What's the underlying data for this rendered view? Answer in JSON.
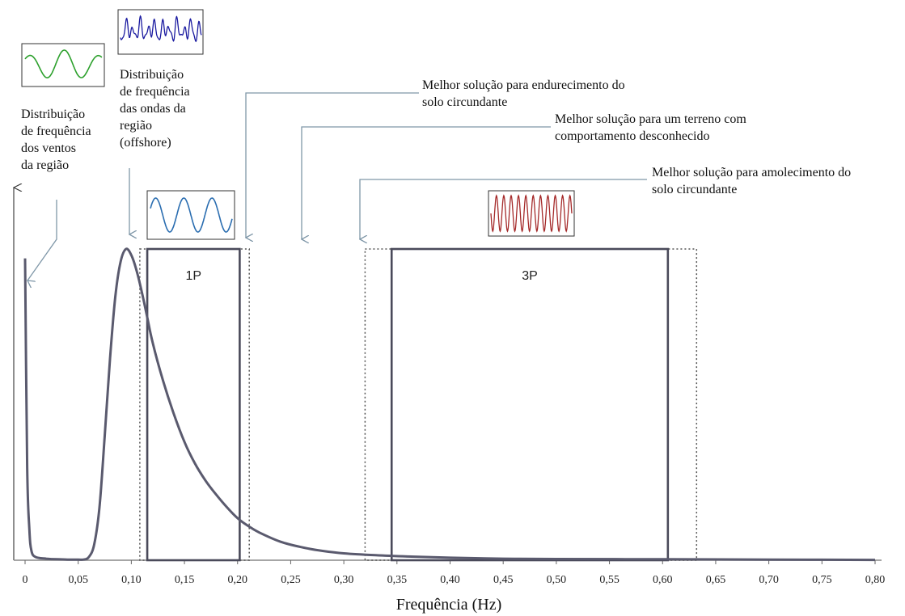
{
  "chart_data": {
    "type": "line",
    "title": "",
    "xlabel": "Frequência (Hz)",
    "ylabel": "",
    "xlim": [
      0,
      0.8
    ],
    "ylim": [
      0,
      1
    ],
    "grid": false,
    "x_ticks": [
      "0",
      "0,05",
      "0,10",
      "0,15",
      "0,20",
      "0,25",
      "0,30",
      "0,35",
      "0,40",
      "0,45",
      "0,50",
      "0,55",
      "0,60",
      "0,65",
      "0,70",
      "0,75",
      "0,80"
    ],
    "x_tick_values": [
      0,
      0.05,
      0.1,
      0.15,
      0.2,
      0.25,
      0.3,
      0.35,
      0.4,
      0.45,
      0.5,
      0.55,
      0.6,
      0.65,
      0.7,
      0.75,
      0.8
    ],
    "series": [
      {
        "x": [
          0,
          0.002,
          0.004,
          0.006,
          0.01,
          0.02,
          0.03,
          0.04,
          0.05,
          0.055,
          0.06,
          0.065,
          0.07,
          0.075,
          0.08,
          0.085,
          0.09,
          0.095,
          0.1,
          0.105,
          0.11,
          0.115,
          0.12,
          0.13,
          0.14,
          0.15,
          0.16,
          0.17,
          0.18,
          0.19,
          0.2,
          0.21,
          0.22,
          0.24,
          0.26,
          0.28,
          0.3,
          0.33,
          0.36,
          0.4,
          0.45,
          0.5,
          0.6,
          0.7,
          0.8
        ],
        "values": [
          0.97,
          0.3,
          0.1,
          0.03,
          0.01,
          0.005,
          0.003,
          0.002,
          0.002,
          0.002,
          0.01,
          0.05,
          0.17,
          0.4,
          0.65,
          0.85,
          0.96,
          1.0,
          0.98,
          0.93,
          0.86,
          0.78,
          0.7,
          0.575,
          0.47,
          0.38,
          0.31,
          0.255,
          0.21,
          0.17,
          0.135,
          0.11,
          0.09,
          0.06,
          0.042,
          0.03,
          0.022,
          0.016,
          0.012,
          0.008,
          0.005,
          0.004,
          0.003,
          0.002,
          0.001
        ]
      }
    ],
    "bands": [
      {
        "label": "1P",
        "x_start": 0.115,
        "x_end": 0.202,
        "dotted_start": 0.108,
        "dotted_end": 0.211,
        "top": 1.0
      },
      {
        "label": "3P",
        "x_start": 0.345,
        "x_end": 0.605,
        "dotted_start": 0.32,
        "dotted_end": 0.632,
        "top": 1.0
      }
    ],
    "annotations": [
      {
        "lines": [
          "Distribuição",
          "de frequência",
          "dos ventos",
          "da região"
        ],
        "x": 0.001
      },
      {
        "lines": [
          "Distribuição",
          "de frequência",
          "das ondas da",
          "região",
          "(offshore)"
        ],
        "x": 0.1
      },
      {
        "lines": [
          "Melhor solução para endurecimento do",
          "solo circundante"
        ],
        "x": 0.208
      },
      {
        "lines": [
          "Melhor solução para um terreno com",
          "comportamento desconhecido"
        ],
        "x": 0.26
      },
      {
        "lines": [
          "Melhor solução para amolecimento do",
          "solo circundante"
        ],
        "x": 0.315
      }
    ]
  },
  "colors": {
    "curve": "#5a5a6e",
    "band": "#4a4a5a",
    "arrow": "#7f97a8",
    "wind_wave": "#2ca02c",
    "ocean_wave": "#1a1aa0",
    "onep_wave": "#2a6db0",
    "threep_wave": "#a52a2a",
    "axis": "#666666"
  },
  "icons": [
    "wind-signal-icon",
    "ocean-wave-signal-icon",
    "1p-signal-icon",
    "3p-signal-icon"
  ]
}
